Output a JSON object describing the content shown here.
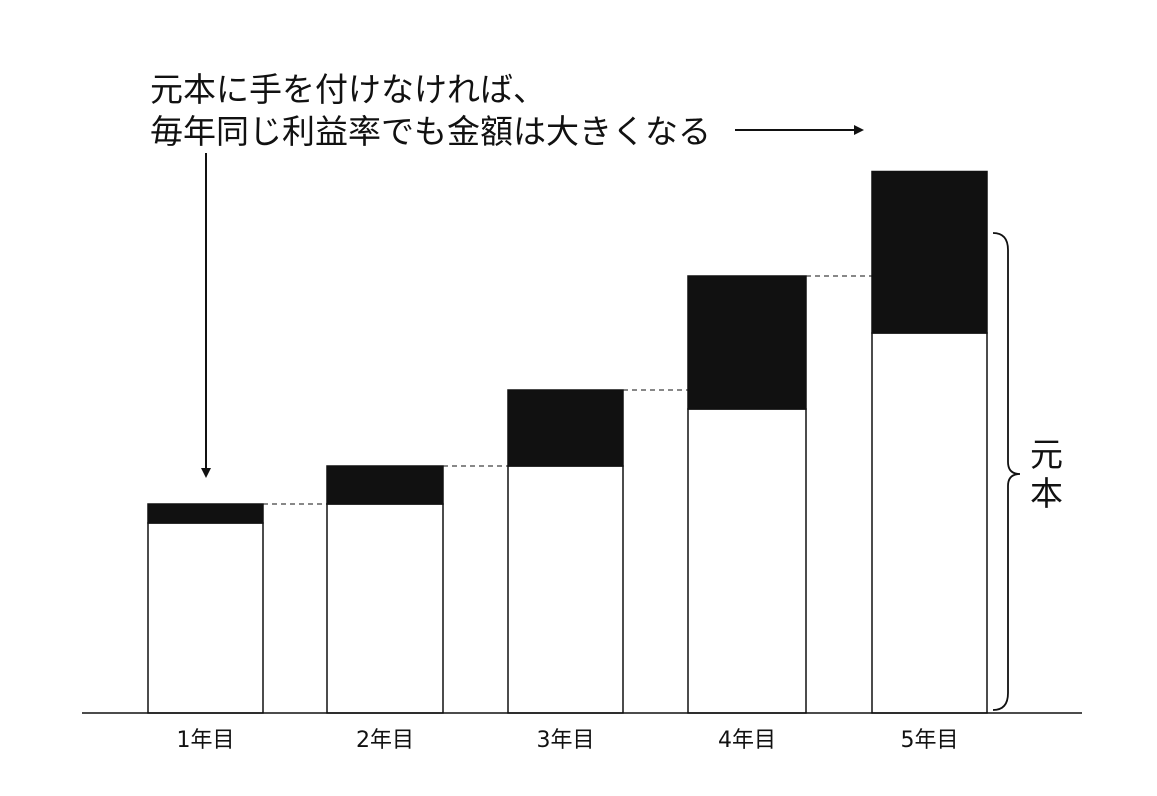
{
  "chart_data": {
    "type": "bar",
    "stacked": true,
    "categories": [
      "1年目",
      "2年目",
      "3年目",
      "4年目",
      "5年目"
    ],
    "series": [
      {
        "values": [
          100,
          110,
          130,
          160,
          200
        ],
        "color": "#ffffff"
      },
      {
        "values": [
          10,
          20,
          40,
          70,
          85
        ],
        "color": "#111111"
      }
    ],
    "annotation": {
      "lines": [
        "元本に手を付けなければ、",
        "毎年同じ利益率でも金額は大きくなる"
      ]
    },
    "brace_label": "元本",
    "grid": false
  }
}
